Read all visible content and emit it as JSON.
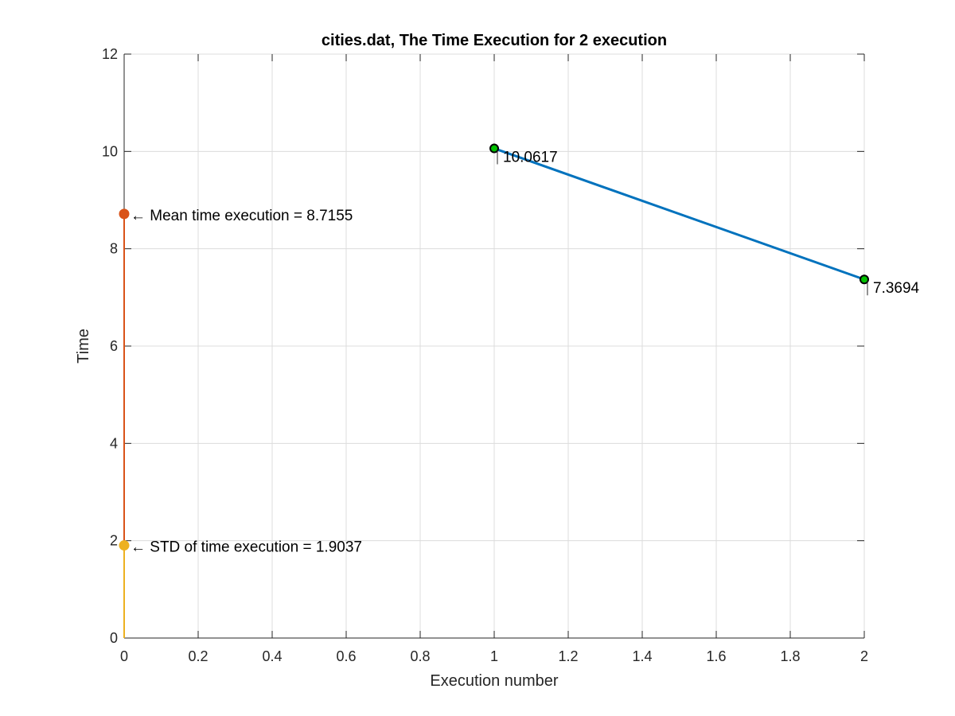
{
  "chart_data": {
    "type": "line",
    "title": "cities.dat, The Time Execution for 2 execution",
    "xlabel": "Execution number",
    "ylabel": "Time",
    "xlim": [
      0,
      2
    ],
    "ylim": [
      0,
      12
    ],
    "xticks": [
      0,
      0.2,
      0.4,
      0.6,
      0.8,
      1,
      1.2,
      1.4,
      1.6,
      1.8,
      2
    ],
    "xtick_labels": [
      "0",
      "0.2",
      "0.4",
      "0.6",
      "0.8",
      "1",
      "1.2",
      "1.4",
      "1.6",
      "1.8",
      "2"
    ],
    "yticks": [
      0,
      2,
      4,
      6,
      8,
      10,
      12
    ],
    "ytick_labels": [
      "0",
      "2",
      "4",
      "6",
      "8",
      "10",
      "12"
    ],
    "grid": true,
    "colors": {
      "execution_line": "#0072BD",
      "mean_stem": "#D95319",
      "std_stem": "#EDB120",
      "point_marker_fill": "#00C000",
      "point_marker_edge": "#000000",
      "grid": "#dcdcdc",
      "axis": "#262626"
    },
    "series": [
      {
        "role": "execution",
        "x": [
          1,
          2
        ],
        "y": [
          10.0617,
          7.3694
        ],
        "color": "#0072BD"
      },
      {
        "role": "mean",
        "type": "stem",
        "x": [
          0
        ],
        "y": [
          8.7155
        ],
        "color": "#D95319"
      },
      {
        "role": "std",
        "type": "stem",
        "x": [
          0
        ],
        "y": [
          1.9037
        ],
        "color": "#EDB120"
      }
    ],
    "annotations": [
      {
        "target": "mean",
        "x": 0,
        "y": 8.7155,
        "text": "← Mean time execution = 8.7155"
      },
      {
        "target": "std",
        "x": 0,
        "y": 1.9037,
        "text": "← STD of time execution = 1.9037"
      },
      {
        "target": "execution-point-1",
        "x": 1,
        "y": 10.0617,
        "text": "10.0617"
      },
      {
        "target": "execution-point-2",
        "x": 2,
        "y": 7.3694,
        "text": "7.3694"
      }
    ]
  }
}
